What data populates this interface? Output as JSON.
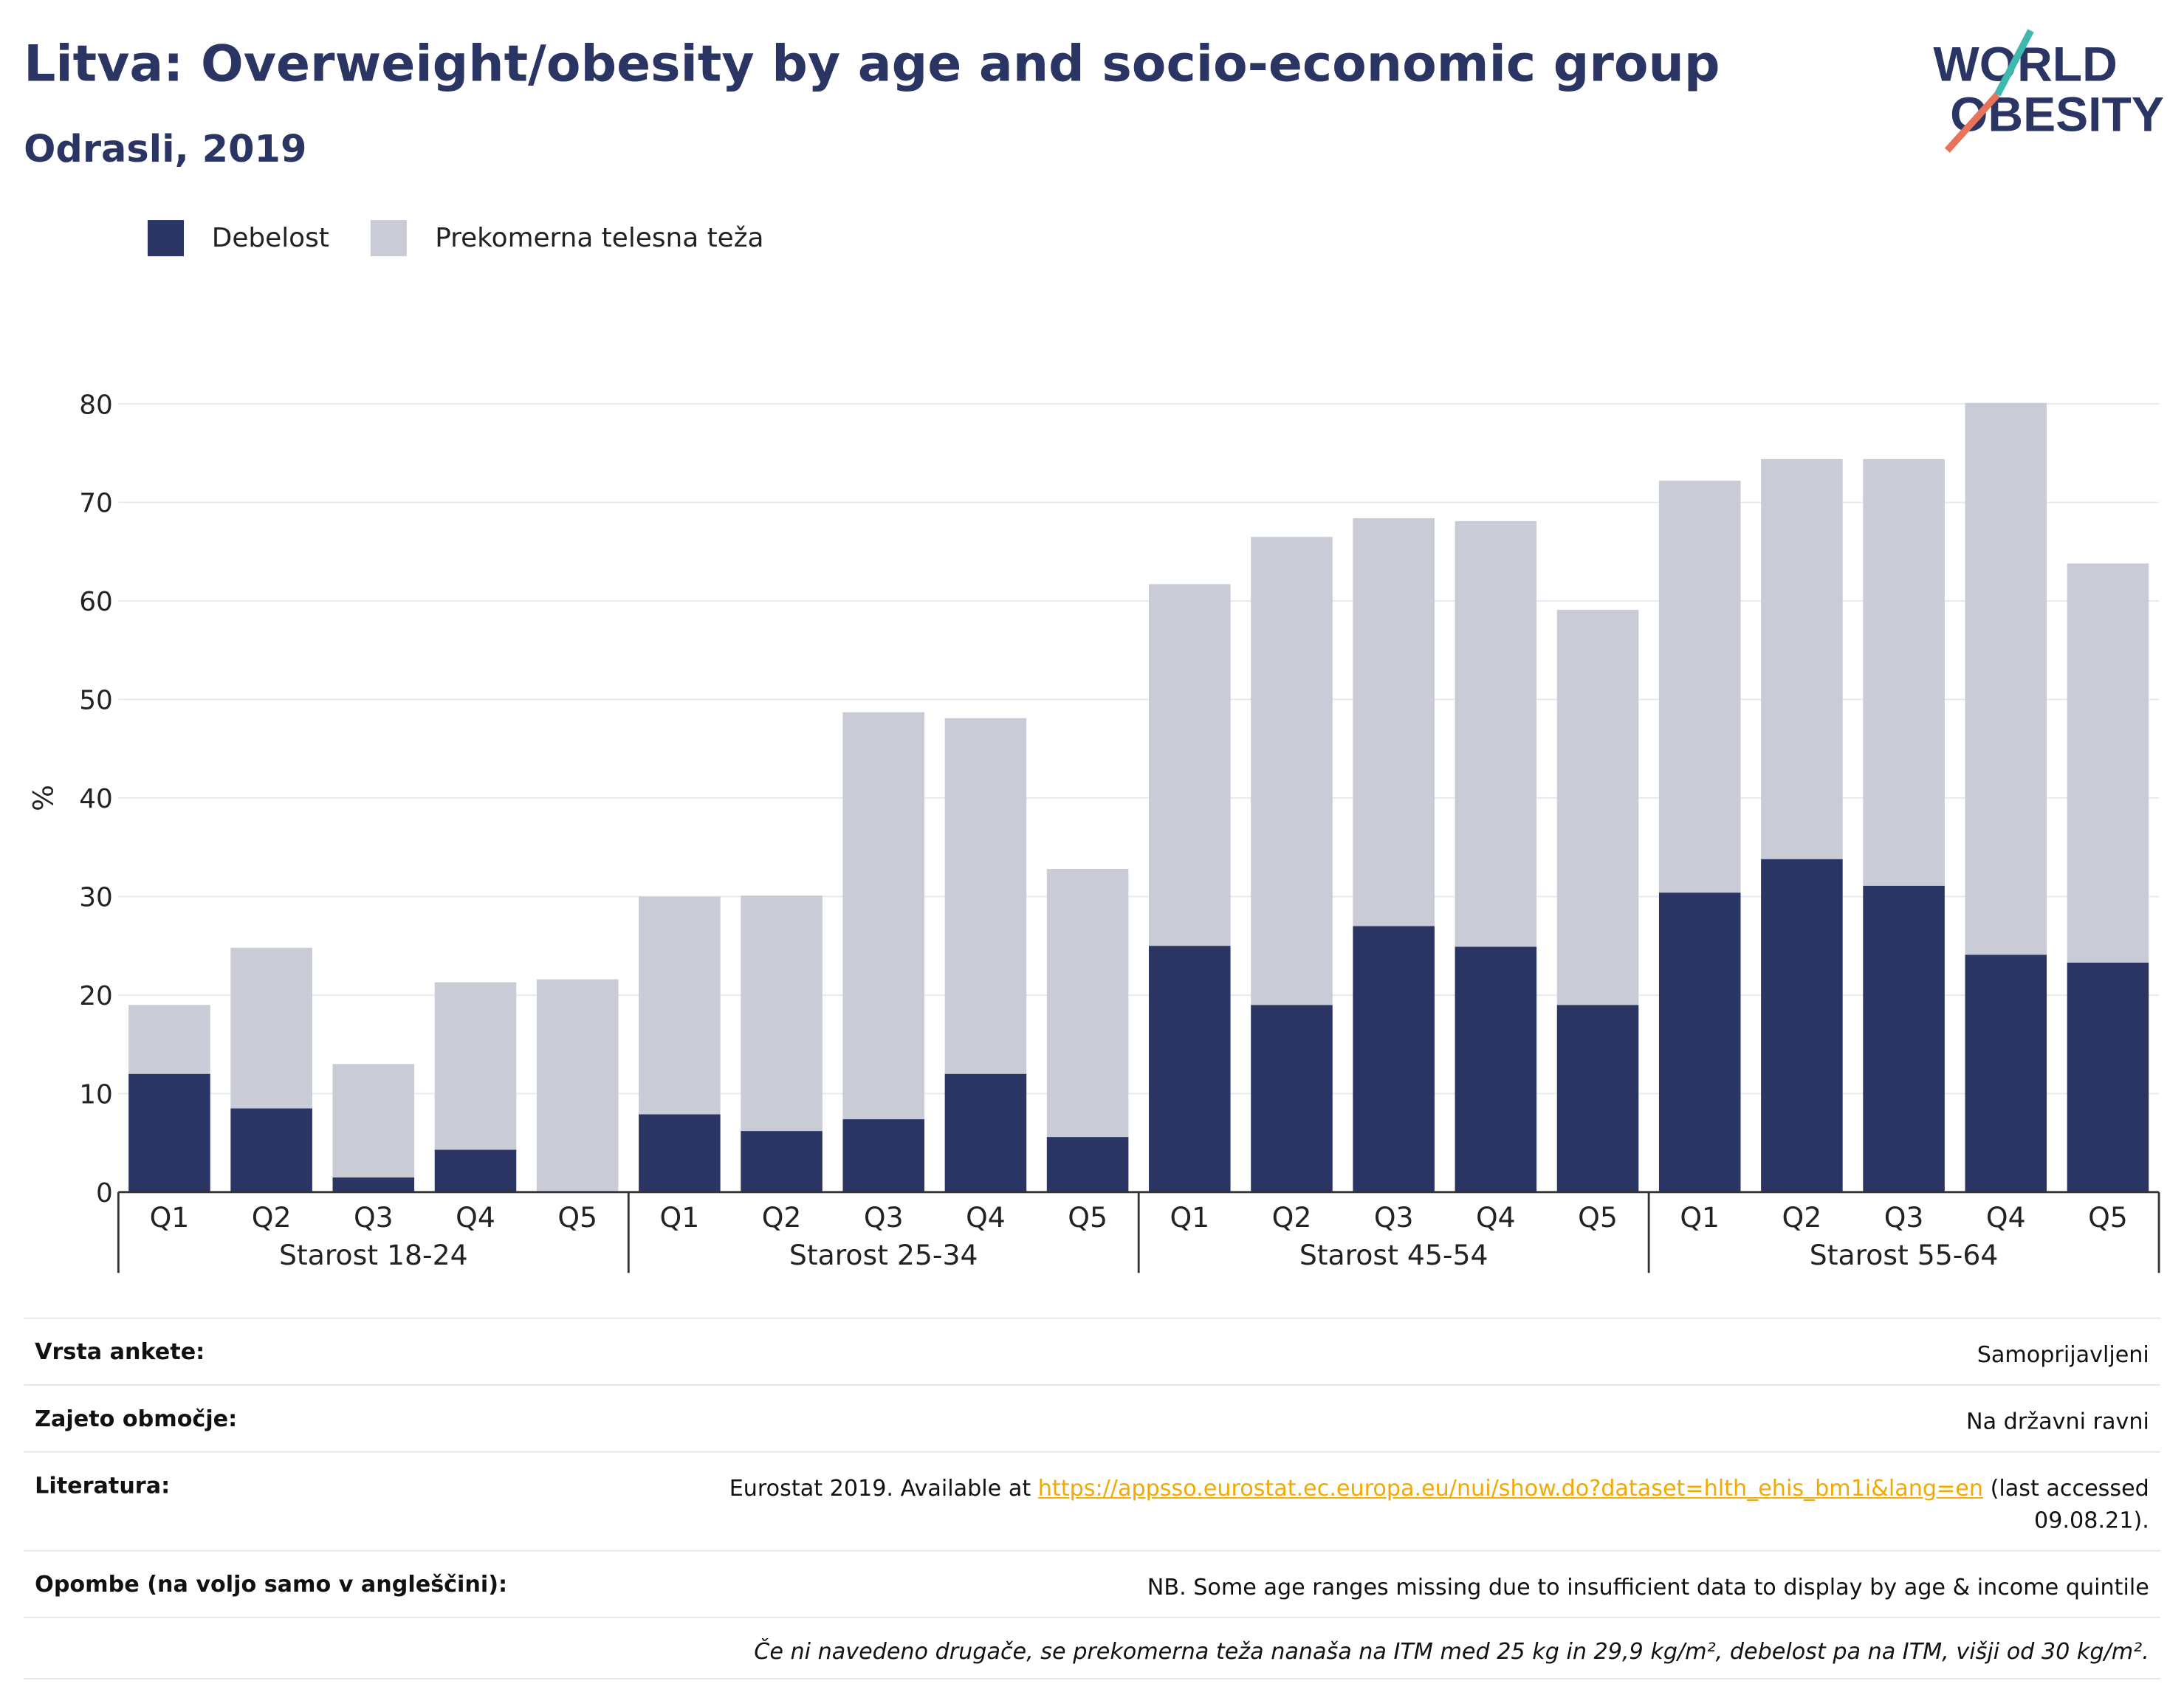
{
  "header": {
    "title": "Litva: Overweight/obesity by age and socio-economic group",
    "subtitle": "Odrasli, 2019"
  },
  "logo": {
    "line1": "WORLD",
    "line2": "OBESITY",
    "accent_colors": [
      "#3fb8b0",
      "#e8735a"
    ]
  },
  "legend": [
    {
      "label": "Debelost",
      "color": "#2a3563"
    },
    {
      "label": "Prekomerna telesna teža",
      "color": "#c9cbd6"
    }
  ],
  "chart_data": {
    "type": "bar",
    "stacked": true,
    "ylabel": "%",
    "ylim": [
      0,
      80
    ],
    "yticks": [
      0,
      10,
      20,
      30,
      40,
      50,
      60,
      70,
      80
    ],
    "grid": true,
    "legend_position": "top-left",
    "groups": [
      "Starost 18-24",
      "Starost 25-34",
      "Starost 45-54",
      "Starost 55-64"
    ],
    "categories": [
      "Q1",
      "Q2",
      "Q3",
      "Q4",
      "Q5"
    ],
    "series": [
      {
        "name": "Debelost",
        "color": "#2a3563",
        "values": [
          [
            12.0,
            8.5,
            1.5,
            4.3,
            0.0
          ],
          [
            7.9,
            6.2,
            7.4,
            12.0,
            5.6
          ],
          [
            25.0,
            19.0,
            27.0,
            24.9,
            19.0
          ],
          [
            30.4,
            33.8,
            31.1,
            24.1,
            23.3
          ]
        ]
      },
      {
        "name": "Prekomerna telesna teža",
        "color": "#c9cbd6",
        "values": [
          [
            7.0,
            16.3,
            11.5,
            17.0,
            21.6
          ],
          [
            22.1,
            23.9,
            41.3,
            36.1,
            27.2
          ],
          [
            36.7,
            47.5,
            41.4,
            43.2,
            40.1
          ],
          [
            41.8,
            40.6,
            43.3,
            56.0,
            40.5
          ]
        ]
      }
    ]
  },
  "info": {
    "rows": [
      {
        "label": "Vrsta ankete:",
        "value": "Samoprijavljeni"
      },
      {
        "label": "Zajeto območje:",
        "value": "Na državni ravni"
      },
      {
        "label": "Literatura:",
        "value_prefix": "Eurostat 2019. Available at ",
        "link": "https://appsso.eurostat.ec.europa.eu/nui/show.do?dataset=hlth_ehis_bm1i&lang=en",
        "value_suffix": " (last accessed",
        "value_suffix2": "09.08.21)."
      },
      {
        "label": "Opombe (na voljo samo v angleščini):",
        "value": "NB. Some age ranges missing due to insufficient data to display by age & income quintile"
      }
    ],
    "note": "Če ni navedeno drugače, se prekomerna teža nanaša na ITM med 25 kg in 29,9 kg/m², debelost pa na ITM, višji od 30 kg/m²."
  }
}
